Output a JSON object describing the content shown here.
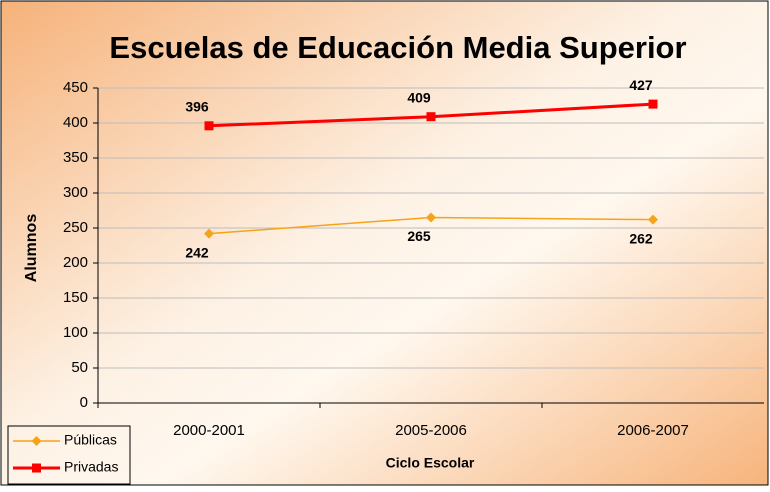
{
  "chart_data": {
    "type": "line",
    "title": "Escuelas de Educación Media Superior",
    "ylabel": "Alumnos",
    "xlabel": "Ciclo Escolar",
    "categories": [
      "2000-2001",
      "2005-2006",
      "2006-2007"
    ],
    "series": [
      {
        "name": "Públicas",
        "color": "#f5a31a",
        "marker": "diamond",
        "values": [
          242,
          265,
          262
        ]
      },
      {
        "name": "Privadas",
        "color": "#ff0000",
        "marker": "square",
        "values": [
          396,
          409,
          427
        ]
      }
    ],
    "ylim": [
      0,
      450
    ],
    "yticks": [
      0,
      50,
      100,
      150,
      200,
      250,
      300,
      350,
      400,
      450
    ],
    "grid": true,
    "legend": "bottom-left"
  }
}
